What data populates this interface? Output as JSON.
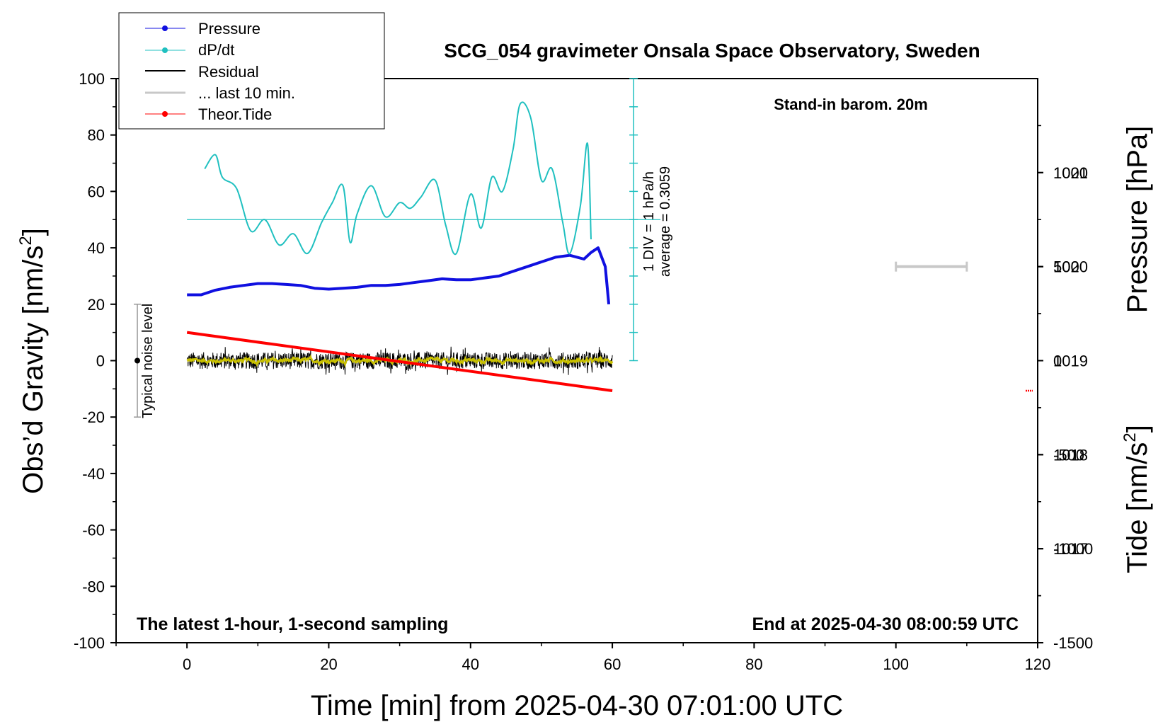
{
  "chart_data": {
    "type": "line",
    "title": "SCG_054 gravimeter Onsala Space Observatory, Sweden",
    "xlabel": "Time [min] from 2025-04-30 07:01:00 UTC",
    "ylabel_left": "Obs’d Gravity [nm/s",
    "ylabel_right_pressure": "Pressure [hPa]",
    "ylabel_right_tide": "Tide [nm/s",
    "superscript": "2",
    "xlim": [
      -10,
      120
    ],
    "ylim_gravity": [
      -100,
      100
    ],
    "ylim_pressure": [
      1016,
      1022
    ],
    "ylim_tide": [
      -1500,
      1500
    ],
    "x_ticks": [
      "0",
      "20",
      "40",
      "60",
      "80",
      "100",
      "120"
    ],
    "x_tick_values": [
      0,
      20,
      40,
      60,
      80,
      100,
      120
    ],
    "y_ticks": [
      "100",
      "80",
      "60",
      "40",
      "20",
      "0",
      "-20",
      "-40",
      "-60",
      "-80",
      "-100"
    ],
    "y_tick_values": [
      100,
      80,
      60,
      40,
      20,
      0,
      -20,
      -40,
      -60,
      -80,
      -100
    ],
    "pressure_ticks": [
      "1021",
      "1020",
      "1019",
      "1018",
      "1017"
    ],
    "pressure_tick_values": [
      1021,
      1020,
      1019,
      1018,
      1017
    ],
    "tide_ticks": [
      "1000",
      "500",
      "0",
      "-500",
      "-1000",
      "-1500"
    ],
    "tide_tick_values": [
      1000,
      500,
      0,
      -500,
      -1000,
      -1500
    ],
    "annotations": {
      "stand_in": "Stand-in barom. 20m",
      "latest": "The latest 1-hour, 1-second sampling",
      "end_at": "End at 2025-04-30 08:00:59 UTC",
      "noise": "Typical noise level",
      "div_label": "1 DIV = 1 hPa/h",
      "average": "average = 0.3059"
    },
    "legend": {
      "placement": "top-left",
      "entries": [
        "Pressure",
        "dP/dt",
        "Residual",
        "... last 10 min.",
        "Theor.Tide"
      ]
    },
    "series": [
      {
        "name": "Pressure",
        "color": "#1010e0",
        "axis": "pressure",
        "x": [
          0,
          2,
          4,
          6,
          8,
          10,
          12,
          14,
          16,
          18,
          20,
          22,
          24,
          26,
          28,
          30,
          32,
          34,
          36,
          38,
          40,
          42,
          44,
          46,
          48,
          50,
          52,
          54,
          56,
          57,
          58,
          59,
          59.5
        ],
        "values": [
          1019.7,
          1019.7,
          1019.75,
          1019.78,
          1019.8,
          1019.82,
          1019.82,
          1019.81,
          1019.8,
          1019.77,
          1019.76,
          1019.77,
          1019.78,
          1019.8,
          1019.8,
          1019.81,
          1019.83,
          1019.85,
          1019.87,
          1019.86,
          1019.86,
          1019.88,
          1019.9,
          1019.95,
          1020.0,
          1020.05,
          1020.1,
          1020.12,
          1020.08,
          1020.15,
          1020.2,
          1020.0,
          1019.6
        ]
      },
      {
        "name": "dP/dt",
        "color": "#20c0c0",
        "axis": "dpdt",
        "x": [
          2.5,
          4,
          5,
          7,
          9,
          11,
          13,
          15,
          17,
          19,
          20.5,
          22,
          23,
          24,
          26,
          28,
          30,
          31.5,
          33,
          35,
          36.5,
          38,
          40,
          41.5,
          43,
          44.5,
          46,
          47,
          48.5,
          50,
          51.5,
          53,
          54,
          55.5,
          56.5,
          57
        ],
        "values": [
          1.8,
          2.3,
          1.5,
          1.1,
          -0.4,
          0.0,
          -0.9,
          -0.5,
          -1.2,
          -0.1,
          0.6,
          1.2,
          -0.8,
          0.2,
          1.2,
          0.1,
          0.6,
          0.4,
          0.8,
          1.4,
          -0.2,
          -1.2,
          0.9,
          -0.3,
          1.5,
          1.0,
          2.5,
          4.1,
          3.6,
          1.4,
          1.8,
          -0.1,
          -1.2,
          0.5,
          2.7,
          -0.7
        ]
      },
      {
        "name": "Residual",
        "color": "#000000",
        "axis": "gravity",
        "x_range": [
          0,
          60
        ],
        "mean": 0,
        "spread": 3
      },
      {
        "name": "... last 10 min.",
        "color": "#c8c8c8",
        "axis": "gravity"
      },
      {
        "name": "Theor.Tide",
        "color": "#ff0000",
        "axis": "tide",
        "x": [
          0,
          60
        ],
        "values": [
          150,
          -160
        ]
      }
    ],
    "noise_bar": {
      "x": -7,
      "center": 0,
      "half_range": 20
    },
    "dpdt_scale": {
      "x": 63,
      "average_gravity_level": 50
    },
    "legend_bar": {
      "x": [
        100,
        110
      ],
      "tide_level": 500
    },
    "tide_marker": {
      "x": 118.8,
      "tide_level": -160
    }
  }
}
